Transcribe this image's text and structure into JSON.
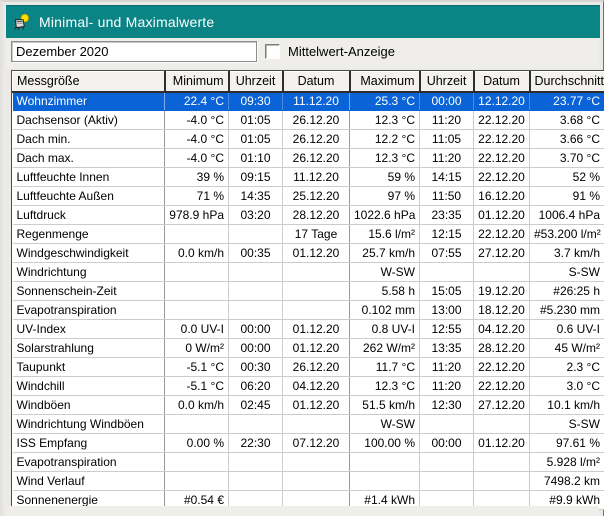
{
  "window": {
    "title": "Minimal- und Maximalwerte",
    "titlebar_color": "#0b8486",
    "icon": "weather-station-icon"
  },
  "toolbar": {
    "period_value": "Dezember 2020",
    "checkbox_label": "Mittelwert-Anzeige",
    "checkbox_checked": false
  },
  "table": {
    "selected_index": 0,
    "selection_color": "#0a64d8",
    "columns": [
      "Messgröße",
      "Minimum",
      "Uhrzeit",
      "Datum",
      "Maximum",
      "Uhrzeit",
      "Datum",
      "Durchschnitt"
    ],
    "rows": [
      [
        "Wohnzimmer",
        "22.4 °C",
        "09:30",
        "11.12.20",
        "25.3 °C",
        "00:00",
        "12.12.20",
        "23.77 °C"
      ],
      [
        "Dachsensor (Aktiv)",
        "-4.0 °C",
        "01:05",
        "26.12.20",
        "12.3 °C",
        "11:20",
        "22.12.20",
        "3.68 °C"
      ],
      [
        "Dach min.",
        "-4.0 °C",
        "01:05",
        "26.12.20",
        "12.2 °C",
        "11:05",
        "22.12.20",
        "3.66 °C"
      ],
      [
        "Dach max.",
        "-4.0 °C",
        "01:10",
        "26.12.20",
        "12.3 °C",
        "11:20",
        "22.12.20",
        "3.70 °C"
      ],
      [
        "Luftfeuchte Innen",
        "39 %",
        "09:15",
        "11.12.20",
        "59 %",
        "14:15",
        "22.12.20",
        "52 %"
      ],
      [
        "Luftfeuchte Außen",
        "71 %",
        "14:35",
        "25.12.20",
        "97 %",
        "11:50",
        "16.12.20",
        "91 %"
      ],
      [
        "Luftdruck",
        "978.9 hPa",
        "03:20",
        "28.12.20",
        "1022.6 hPa",
        "23:35",
        "01.12.20",
        "1006.4 hPa"
      ],
      [
        "Regenmenge",
        "",
        "",
        "17 Tage",
        "15.6 l/m²",
        "12:15",
        "22.12.20",
        "#53.200 l/m²"
      ],
      [
        "Windgeschwindigkeit",
        "0.0 km/h",
        "00:35",
        "01.12.20",
        "25.7 km/h",
        "07:55",
        "27.12.20",
        "3.7 km/h"
      ],
      [
        "Windrichtung",
        "",
        "",
        "",
        "W-SW",
        "",
        "",
        "S-SW"
      ],
      [
        "Sonnenschein-Zeit",
        "",
        "",
        "",
        "5.58 h",
        "15:05",
        "19.12.20",
        "#26:25 h"
      ],
      [
        "Evapotranspiration",
        "",
        "",
        "",
        "0.102 mm",
        "13:00",
        "18.12.20",
        "#5.230 mm"
      ],
      [
        "UV-Index",
        "0.0 UV-I",
        "00:00",
        "01.12.20",
        "0.8 UV-I",
        "12:55",
        "04.12.20",
        "0.6 UV-I"
      ],
      [
        "Solarstrahlung",
        "0 W/m²",
        "00:00",
        "01.12.20",
        "262 W/m²",
        "13:35",
        "28.12.20",
        "45 W/m²"
      ],
      [
        "Taupunkt",
        "-5.1 °C",
        "00:30",
        "26.12.20",
        "11.7 °C",
        "11:20",
        "22.12.20",
        "2.3 °C"
      ],
      [
        "Windchill",
        "-5.1 °C",
        "06:20",
        "04.12.20",
        "12.3 °C",
        "11:20",
        "22.12.20",
        "3.0 °C"
      ],
      [
        "Windböen",
        "0.0 km/h",
        "02:45",
        "01.12.20",
        "51.5 km/h",
        "12:30",
        "27.12.20",
        "10.1 km/h"
      ],
      [
        "Windrichtung Windböen",
        "",
        "",
        "",
        "W-SW",
        "",
        "",
        "S-SW"
      ],
      [
        "ISS Empfang",
        "0.00 %",
        "22:30",
        "07.12.20",
        "100.00 %",
        "00:00",
        "01.12.20",
        "97.61 %"
      ],
      [
        "Evapotranspiration",
        "",
        "",
        "",
        "",
        "",
        "",
        "5.928 l/m²"
      ],
      [
        "Wind Verlauf",
        "",
        "",
        "",
        "",
        "",
        "",
        "7498.2 km"
      ],
      [
        "Sonnenenergie",
        "#0.54 €",
        "",
        "",
        "#1.4 kWh",
        "",
        "",
        "#9.9 kWh"
      ]
    ]
  }
}
